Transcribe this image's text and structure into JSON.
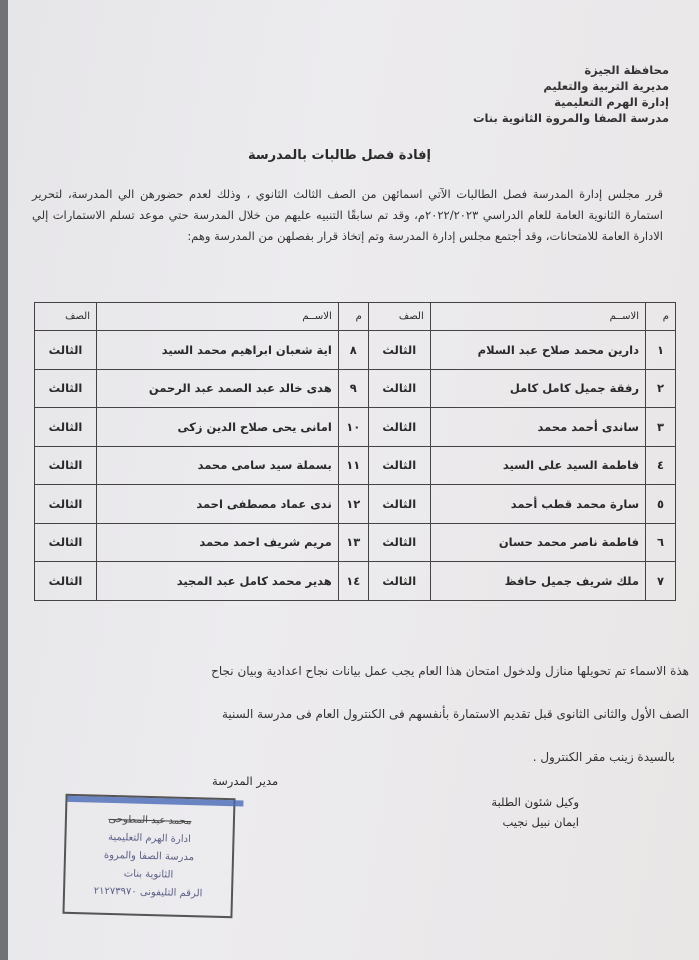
{
  "header": [
    "محافظة الجيزة",
    "مديرية التربية والتعليم",
    "إدارة الهرم التعليمية",
    "مدرسة الصفا والمروة الثانوية بنات"
  ],
  "title": "إفادة فصل طالبات بالمدرسة",
  "paragraph": "قرر مجلس إدارة المدرسة فصل الطالبات الآتي اسمائهن من الصف الثالث الثانوي ، وذلك لعدم حضورهن الي المدرسة، لتحرير استمارة الثانوية العامة للعام الدراسي ٢٠٢٢/٢٠٢٣م، وقد تم سابقًا التنبيه عليهم من خلال المدرسة حتي موعد تسلم الاستمارات إلي الادارة العامة للامتحانات، وقد أجتمع مجلس إدارة المدرسة وتم إتخاذ قرار بفصلهن من المدرسة وهم:",
  "table": {
    "headers": [
      "م",
      "الاســم",
      "الصف",
      "م",
      "الاســم",
      "الصف"
    ],
    "rows": [
      [
        "١",
        "دارين محمد صلاح عبد السلام",
        "الثالث",
        "٨",
        "اية شعبان ابراهيم محمد السيد",
        "الثالث"
      ],
      [
        "٢",
        "رفقة جميل كامل كامل",
        "الثالث",
        "٩",
        "هدى خالد عبد الصمد عبد الرحمن",
        "الثالث"
      ],
      [
        "٣",
        "ساندى أحمد محمد",
        "الثالث",
        "١٠",
        "امانى يحى صلاح الدين زكى",
        "الثالث"
      ],
      [
        "٤",
        "فاطمة السيد على السيد",
        "الثالث",
        "١١",
        "بسملة سيد سامى محمد",
        "الثالث"
      ],
      [
        "٥",
        "سارة محمد قطب أحمد",
        "الثالث",
        "١٢",
        "ندى عماد مصطفى احمد",
        "الثالث"
      ],
      [
        "٦",
        "فاطمة ناصر محمد حسان",
        "الثالث",
        "١٣",
        "مريم شريف احمد محمد",
        "الثالث"
      ],
      [
        "٧",
        "ملك شريف جميل حافظ",
        "الثالث",
        "١٤",
        "هدير محمد كامل عبد المجيد",
        "الثالث"
      ]
    ]
  },
  "note": [
    "هذة الاسماء تم تحويلها منازل ولدخول امتحان هذا العام يجب عمل بيانات نجاح اعدادية وبيان نجاح",
    "الصف الأول والثانى الثانوى قبل تقديم الاستمارة بأنفسهم فى الكنترول العام فى مدرسة السنية",
    "بالسيدة زينب مقر الكنترول ."
  ],
  "signatures": {
    "student_affairs_title": "وكيل شئون الطلبة",
    "student_affairs_name": "ايمان نبيل نجيب",
    "principal_title": "مدير المدرسة",
    "stamp": [
      "محمد عبد المطوحى",
      "ادارة الهرم التعليمية",
      "مدرسة الصفا والمروة",
      "الثانوية بنات",
      "الرقم التليفونى ٢١٢٧٣٩٧٠"
    ]
  }
}
